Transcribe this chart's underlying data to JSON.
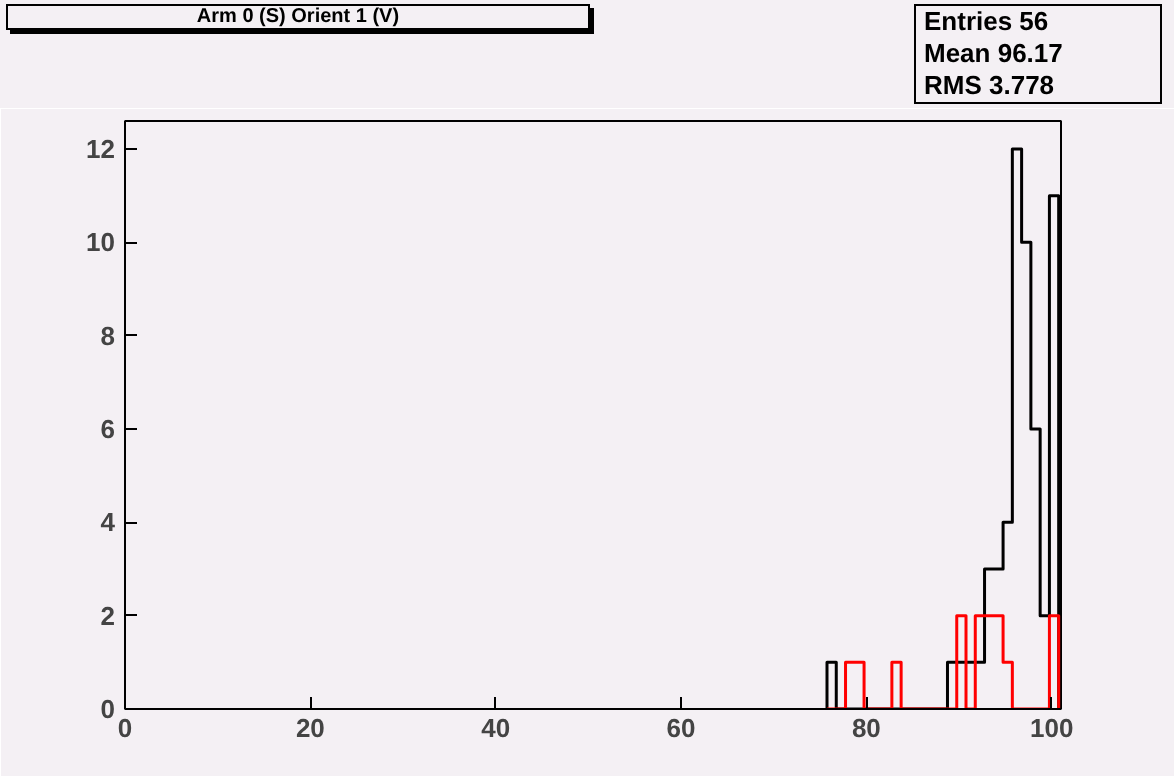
{
  "chart_data": {
    "type": "histogram",
    "title": "Arm 0 (S) Orient 1 (V)",
    "bins": [
      75.75,
      76.75,
      77.75,
      78.75,
      79.75,
      80.75,
      81.75,
      82.75,
      83.75,
      84.75,
      85.75,
      86.75,
      87.75,
      88.75,
      89.75,
      90.75,
      91.75,
      92.75,
      93.75,
      94.75,
      95.75,
      96.75,
      97.75,
      98.75,
      99.75,
      100.75
    ],
    "series": [
      {
        "color": "#000000",
        "values": [
          1,
          0,
          0,
          0,
          0,
          0,
          0,
          0,
          0,
          0,
          0,
          0,
          0,
          1,
          1,
          1,
          1,
          3,
          3,
          4,
          12,
          10,
          6,
          2,
          11
        ]
      },
      {
        "color": "#ff0000",
        "values": [
          0,
          0,
          1,
          1,
          0,
          0,
          0,
          1,
          0,
          0,
          0,
          0,
          0,
          0,
          2,
          0,
          2,
          2,
          2,
          1,
          0,
          0,
          0,
          0,
          2
        ]
      }
    ],
    "xlim": [
      0,
      101
    ],
    "ylim": [
      0,
      12.6
    ],
    "xticks": [
      0,
      20,
      40,
      60,
      80,
      100
    ],
    "yticks": [
      0,
      2,
      4,
      6,
      8,
      10,
      12
    ],
    "grid": false,
    "annotations": [
      "Entries 56",
      "Mean 96.17",
      "RMS 3.778"
    ]
  }
}
